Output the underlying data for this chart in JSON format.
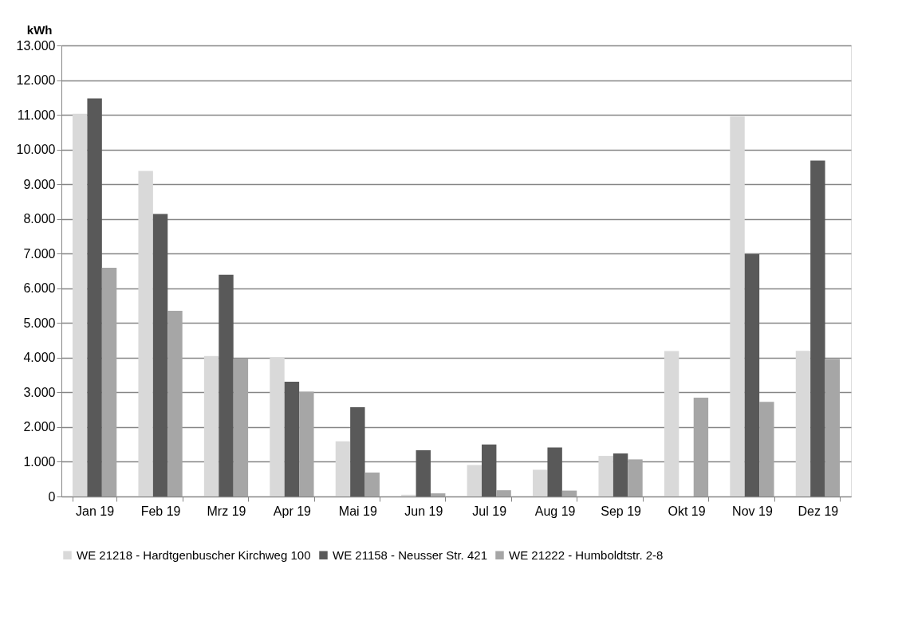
{
  "chart_data": {
    "type": "bar",
    "ylabel": "kWh",
    "categories": [
      "Jan 19",
      "Feb 19",
      "Mrz 19",
      "Apr 19",
      "Mai 19",
      "Jun 19",
      "Jul 19",
      "Aug 19",
      "Sep 19",
      "Okt 19",
      "Nov 19",
      "Dez 19"
    ],
    "series": [
      {
        "name": "WE 21218 - Hardtgenbuscher Kirchweg 100",
        "color": "#d9d9d9",
        "values": [
          11030,
          9380,
          4050,
          4010,
          1590,
          50,
          910,
          770,
          1170,
          4190,
          10950,
          4200
        ]
      },
      {
        "name": "WE 21158 - Neusser Str. 421",
        "color": "#595959",
        "values": [
          11470,
          8140,
          6390,
          3310,
          2570,
          1330,
          1500,
          1410,
          1240,
          0,
          6980,
          9680
        ]
      },
      {
        "name": "WE 21222 - Humboldtstr. 2-8",
        "color": "#a6a6a6",
        "values": [
          6590,
          5350,
          3980,
          3020,
          690,
          90,
          180,
          170,
          1070,
          2850,
          2730,
          3960
        ]
      }
    ],
    "ylim": [
      0,
      13000
    ],
    "yticks": [
      0,
      {
        "value": 1000,
        "label": "1.000"
      },
      {
        "value": 2000,
        "label": "2.000"
      },
      {
        "value": 3000,
        "label": "3.000"
      },
      {
        "value": 4000,
        "label": "4.000"
      },
      {
        "value": 5000,
        "label": "5.000"
      },
      {
        "value": 6000,
        "label": "6.000"
      },
      {
        "value": 7000,
        "label": "7.000"
      },
      {
        "value": 8000,
        "label": "8.000"
      },
      {
        "value": 9000,
        "label": "9.000"
      },
      {
        "value": 10000,
        "label": "10.000"
      },
      {
        "value": 11000,
        "label": "11.000"
      },
      {
        "value": 12000,
        "label": "12.000"
      },
      {
        "value": 13000,
        "label": "13.000"
      }
    ],
    "grid": "y",
    "legend": "bottom"
  }
}
